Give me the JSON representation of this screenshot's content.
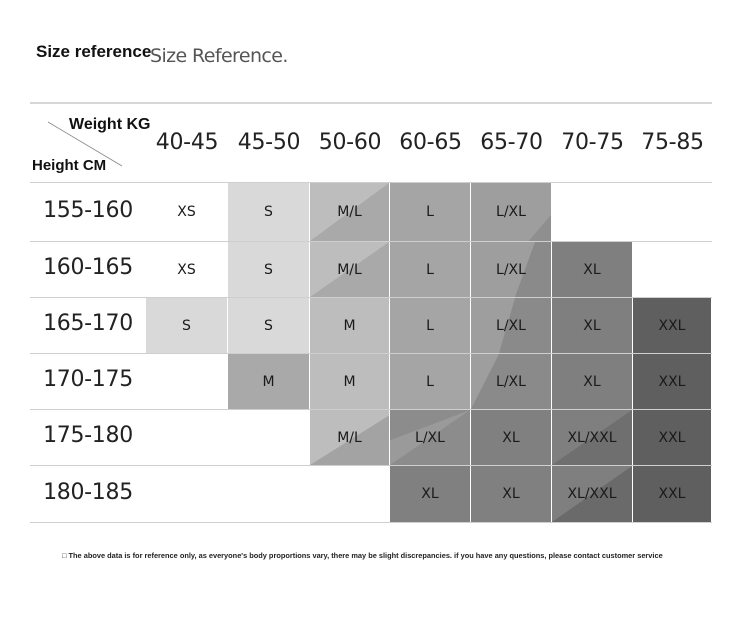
{
  "title": {
    "bold": "Size reference",
    "light": "Size Reference."
  },
  "table": {
    "corner": {
      "weight_label": "Weight KG",
      "height_label": "Height CM"
    },
    "weights": [
      "40-45",
      "45-50",
      "50-60",
      "60-65",
      "65-70",
      "70-75",
      "75-85"
    ],
    "heights": [
      "155-160",
      "160-165",
      "165-170",
      "170-175",
      "175-180",
      "180-185"
    ],
    "rows": [
      [
        "XS",
        "S",
        "M/L",
        "L",
        "L/XL",
        "",
        ""
      ],
      [
        "XS",
        "S",
        "M/L",
        "L",
        "L/XL",
        "XL",
        ""
      ],
      [
        "S",
        "S",
        "M",
        "L",
        "L/XL",
        "XL",
        "XXL"
      ],
      [
        "",
        "M",
        "M",
        "L",
        "L/XL",
        "XL",
        "XXL"
      ],
      [
        "",
        "",
        "M/L",
        "L/XL",
        "XL",
        "XL/XXL",
        "XXL"
      ],
      [
        "",
        "",
        "",
        "XL",
        "XL",
        "XL/XXL",
        "XXL"
      ]
    ]
  },
  "footnote": "□ The above data is for reference only, as everyone's body proportions vary, there may be slight discrepancies. if you have any questions, please contact customer service"
}
